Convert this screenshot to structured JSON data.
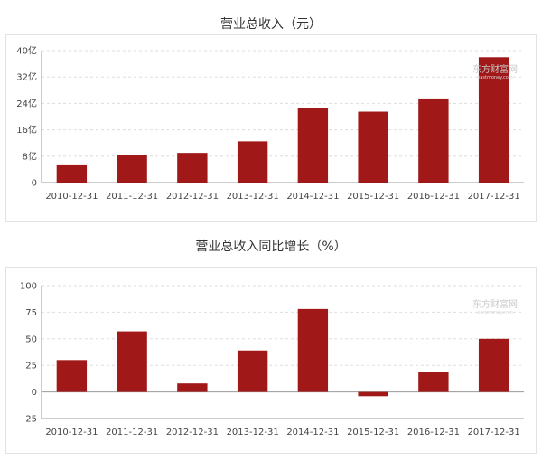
{
  "charts": [
    {
      "title": "营业总收入（元）",
      "chart_data": {
        "type": "bar",
        "categories": [
          "2010-12-31",
          "2011-12-31",
          "2012-12-31",
          "2013-12-31",
          "2014-12-31",
          "2015-12-31",
          "2016-12-31",
          "2017-12-31"
        ],
        "values": [
          5.5,
          8.3,
          9.0,
          12.5,
          22.5,
          21.5,
          25.5,
          38.0
        ],
        "yticks": [
          0,
          8,
          16,
          24,
          32,
          40
        ],
        "ytick_labels": [
          "0",
          "8亿",
          "16亿",
          "24亿",
          "32亿",
          "40亿"
        ],
        "ylim": [
          0,
          40
        ],
        "grid": true,
        "title": "营业总收入（元）"
      }
    },
    {
      "title": "营业总收入同比增长（%）",
      "chart_data": {
        "type": "bar",
        "categories": [
          "2010-12-31",
          "2011-12-31",
          "2012-12-31",
          "2013-12-31",
          "2014-12-31",
          "2015-12-31",
          "2016-12-31",
          "2017-12-31"
        ],
        "values": [
          30,
          57,
          8,
          39,
          78,
          -4,
          19,
          50
        ],
        "yticks": [
          -25,
          0,
          25,
          50,
          75,
          100
        ],
        "ytick_labels": [
          "-25",
          "0",
          "25",
          "50",
          "75",
          "100"
        ],
        "ylim": [
          -25,
          100
        ],
        "grid": true,
        "title": "营业总收入同比增长（%）"
      }
    }
  ],
  "watermark": {
    "name": "东方财富网",
    "url": "eastmoney.com"
  },
  "colors": {
    "bar": "#a01818",
    "grid": "#dddddd",
    "axis": "#999999"
  }
}
